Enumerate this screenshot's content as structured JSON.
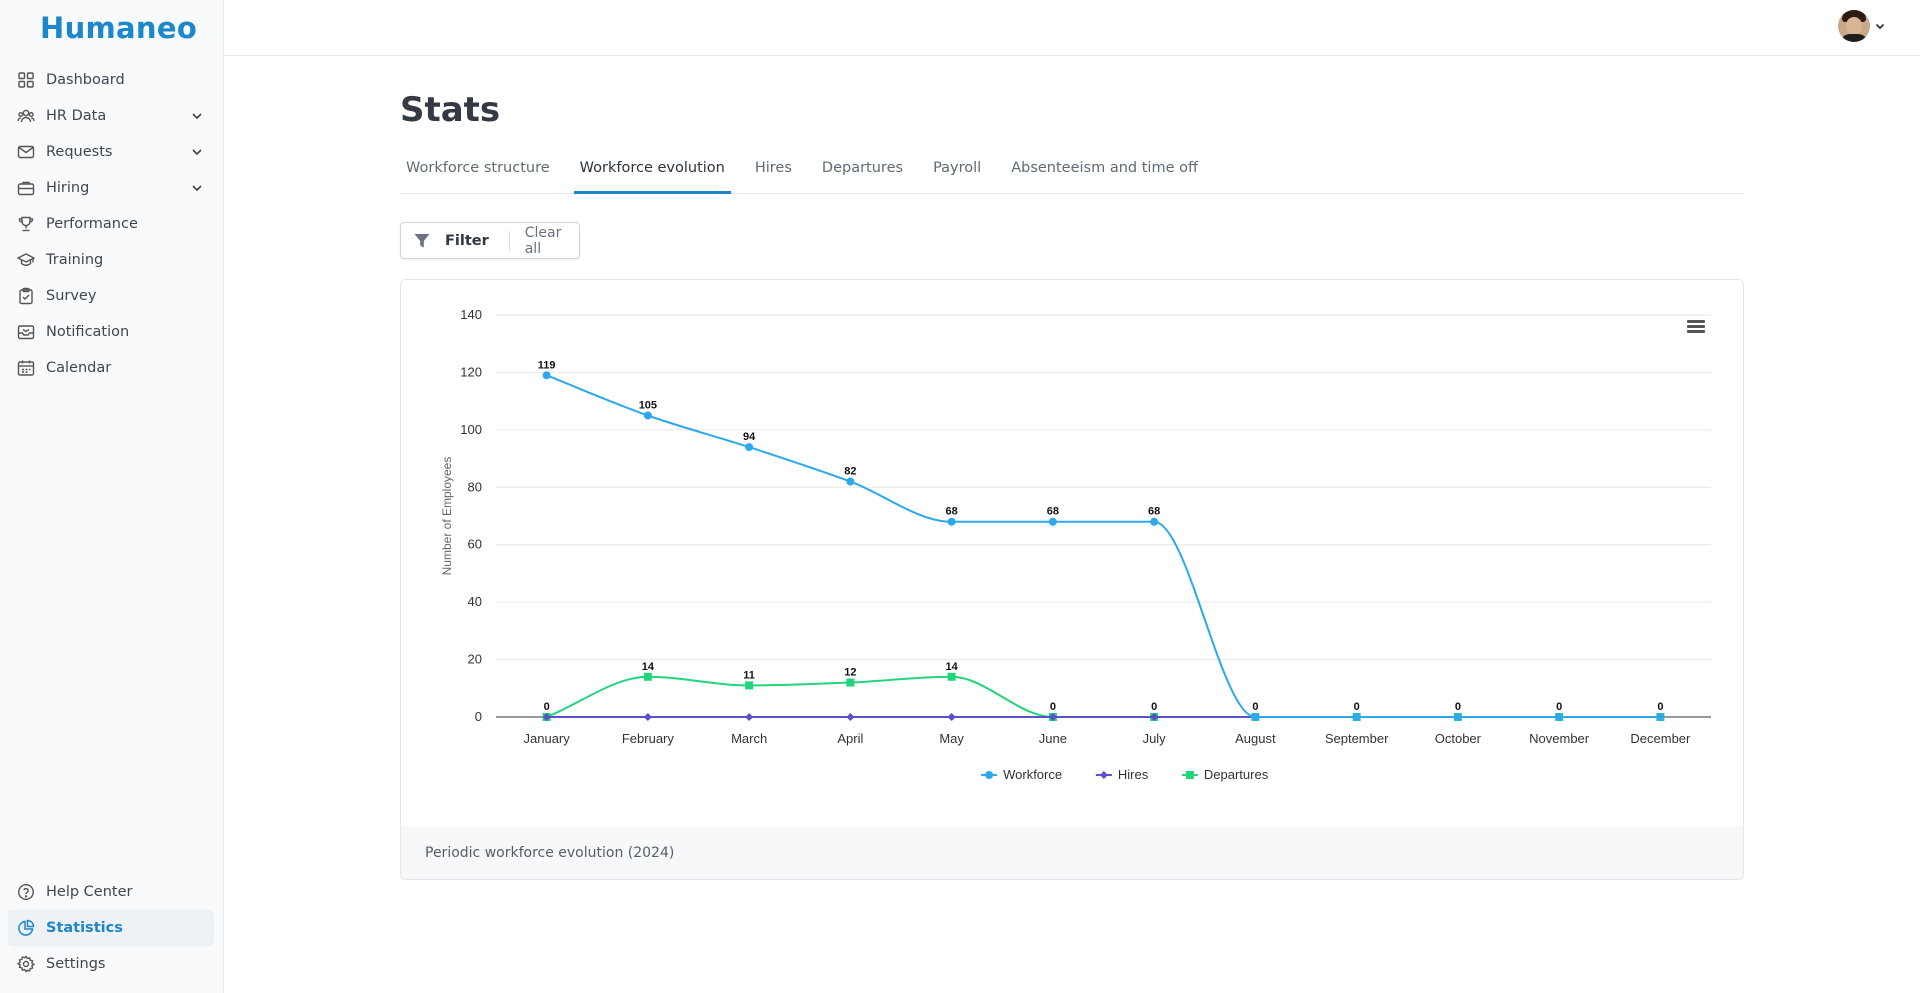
{
  "app": {
    "logo": "Humaneo"
  },
  "sidebar": {
    "items": [
      {
        "label": "Dashboard",
        "icon": "grid-icon",
        "chevron": false
      },
      {
        "label": "HR Data",
        "icon": "users-icon",
        "chevron": true
      },
      {
        "label": "Requests",
        "icon": "mail-icon",
        "chevron": true
      },
      {
        "label": "Hiring",
        "icon": "briefcase-icon",
        "chevron": true
      },
      {
        "label": "Performance",
        "icon": "trophy-icon",
        "chevron": false
      },
      {
        "label": "Training",
        "icon": "graduation-cap-icon",
        "chevron": false
      },
      {
        "label": "Survey",
        "icon": "clipboard-icon",
        "chevron": false
      },
      {
        "label": "Notification",
        "icon": "inbox-icon",
        "chevron": false
      },
      {
        "label": "Calendar",
        "icon": "calendar-icon",
        "chevron": false
      }
    ],
    "bottom_items": [
      {
        "label": "Help Center",
        "icon": "help-circle-icon"
      },
      {
        "label": "Statistics",
        "icon": "pie-chart-icon",
        "active": true
      },
      {
        "label": "Settings",
        "icon": "gear-icon"
      }
    ]
  },
  "main": {
    "title": "Stats",
    "tabs": [
      {
        "label": "Workforce structure",
        "active": false
      },
      {
        "label": "Workforce evolution",
        "active": true
      },
      {
        "label": "Hires",
        "active": false
      },
      {
        "label": "Departures",
        "active": false
      },
      {
        "label": "Payroll",
        "active": false
      },
      {
        "label": "Absenteeism and time off",
        "active": false
      }
    ],
    "filter": {
      "label": "Filter",
      "clear_label": "Clear all"
    },
    "chart_footer": "Periodic workforce evolution (2024)"
  },
  "colors": {
    "accent": "#1c87c9",
    "workforce": "#2da8ec",
    "hires": "#5a50c8",
    "departures": "#22d47c"
  },
  "chart_data": {
    "type": "line",
    "categories": [
      "January",
      "February",
      "March",
      "April",
      "May",
      "June",
      "July",
      "August",
      "September",
      "October",
      "November",
      "December"
    ],
    "ylabel": "Number of Employees",
    "ylim": [
      0,
      140
    ],
    "yticks": [
      0,
      20,
      40,
      60,
      80,
      100,
      120,
      140
    ],
    "grid": true,
    "legend": "bottom-center",
    "series": [
      {
        "name": "Workforce",
        "values": [
          119,
          105,
          94,
          82,
          68,
          68,
          68,
          0,
          0,
          0,
          0,
          0
        ],
        "color": "#2da8ec",
        "marker": "circle",
        "labels": true
      },
      {
        "name": "Hires",
        "values": [
          0,
          0,
          0,
          0,
          0,
          0,
          0,
          0,
          0,
          0,
          0,
          0
        ],
        "color": "#5a50c8",
        "marker": "diamond",
        "labels": false
      },
      {
        "name": "Departures",
        "values": [
          0,
          14,
          11,
          12,
          14,
          0,
          0,
          0,
          0,
          0,
          0,
          0
        ],
        "color": "#22d47c",
        "marker": "square",
        "labels": true
      }
    ]
  }
}
